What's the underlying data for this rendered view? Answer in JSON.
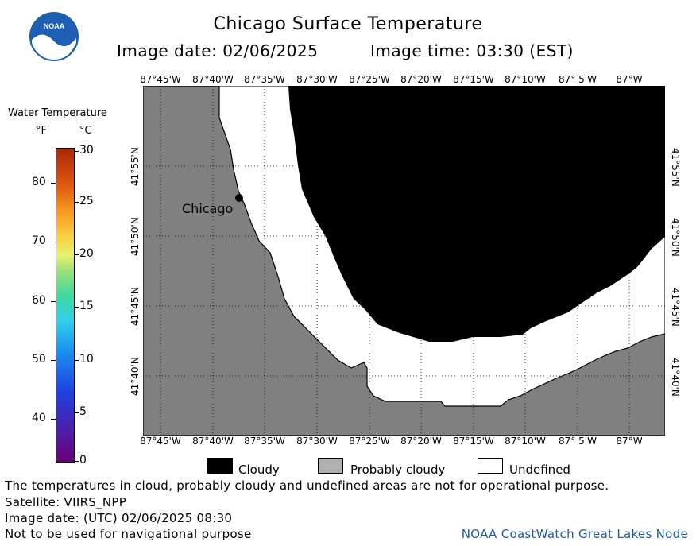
{
  "header": {
    "title": "Chicago Surface Temperature",
    "image_date": "Image date: 02/06/2025",
    "image_time": "Image time: 03:30 (EST)",
    "logo_text": "NOAA"
  },
  "colorbar": {
    "title": "Water Temperature",
    "unit_f": "°F",
    "unit_c": "°C",
    "f_ticks": [
      "80",
      "70",
      "60",
      "50",
      "40"
    ],
    "c_ticks": [
      "30",
      "25",
      "20",
      "15",
      "10",
      "5",
      "0"
    ]
  },
  "map": {
    "lon_labels": [
      "87°45'W",
      "87°40'W",
      "87°35'W",
      "87°30'W",
      "87°25'W",
      "87°20'W",
      "87°15'W",
      "87°10'W",
      "87° 5'W",
      "87°W"
    ],
    "lat_labels": [
      "41°55'N",
      "41°50'N",
      "41°45'N",
      "41°40'N"
    ],
    "city_label": "Chicago"
  },
  "legend": {
    "cloudy": "Cloudy",
    "probably_cloudy": "Probably cloudy",
    "undefined": "Undefined"
  },
  "footer": {
    "note": "The temperatures in cloud, probably cloudy and undefined areas are not for operational purpose.",
    "satellite": "Satellite: VIIRS_NPP",
    "utc_date": "Image date: (UTC) 02/06/2025  08:30",
    "nav_warning": "Not to be used for navigational purpose",
    "credit": "NOAA CoastWatch Great Lakes Node"
  }
}
